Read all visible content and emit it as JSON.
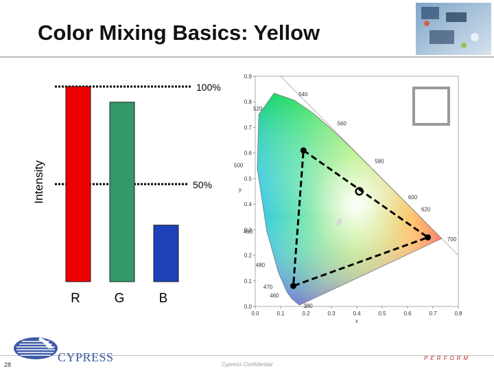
{
  "slide": {
    "title": "Color Mixing Basics: Yellow",
    "page_number": "28",
    "confidential": "Cypress Confidential",
    "brand": "CYPRESS",
    "tagline": "PERFORM"
  },
  "colors": {
    "red_bar": "#ee0000",
    "green_bar": "#33996a",
    "blue_bar": "#1e40b8",
    "swatch": "#ffd840",
    "swatch_border": "#9a9a9a",
    "logo_blue": "#3b5aa6",
    "tagline_red": "#c0282d"
  },
  "chart_data": [
    {
      "type": "bar",
      "categories": [
        "R",
        "G",
        "B"
      ],
      "values": [
        100,
        92,
        29
      ],
      "ylabel": "Intensity",
      "ylim": [
        0,
        100
      ],
      "reference_lines": [
        {
          "value": 100,
          "label": "100%"
        },
        {
          "value": 50,
          "label": "50%"
        }
      ]
    },
    {
      "type": "scatter",
      "xlabel": "x",
      "ylabel": "y",
      "xlim": [
        0,
        0.8
      ],
      "ylim": [
        0,
        0.9
      ],
      "x_ticks": [
        "0.0",
        "0.1",
        "0.2",
        "0.3",
        "0.4",
        "0.5",
        "0.6",
        "0.7",
        "0.8"
      ],
      "y_ticks": [
        "0.0",
        "0.1",
        "0.2",
        "0.3",
        "0.4",
        "0.5",
        "0.6",
        "0.7",
        "0.8",
        "0.9"
      ],
      "wavelength_labels": [
        "380",
        "460",
        "470",
        "480",
        "490",
        "500",
        "520",
        "540",
        "560",
        "580",
        "600",
        "620",
        "700"
      ],
      "locus": [
        [
          0.1741,
          0.005
        ],
        [
          0.144,
          0.0297
        ],
        [
          0.1241,
          0.0578
        ],
        [
          0.0913,
          0.1327
        ],
        [
          0.0454,
          0.295
        ],
        [
          0.0082,
          0.5384
        ],
        [
          0.0139,
          0.7502
        ],
        [
          0.0743,
          0.8338
        ],
        [
          0.1547,
          0.8059
        ],
        [
          0.2296,
          0.7543
        ],
        [
          0.3016,
          0.6923
        ],
        [
          0.3731,
          0.6245
        ],
        [
          0.4441,
          0.5547
        ],
        [
          0.5125,
          0.4866
        ],
        [
          0.5752,
          0.4242
        ],
        [
          0.627,
          0.3725
        ],
        [
          0.6915,
          0.3083
        ],
        [
          0.7347,
          0.2653
        ]
      ],
      "gamut_triangle": [
        [
          0.19,
          0.61
        ],
        [
          0.68,
          0.27
        ],
        [
          0.15,
          0.08
        ]
      ],
      "mix_point": [
        0.41,
        0.45
      ]
    }
  ]
}
